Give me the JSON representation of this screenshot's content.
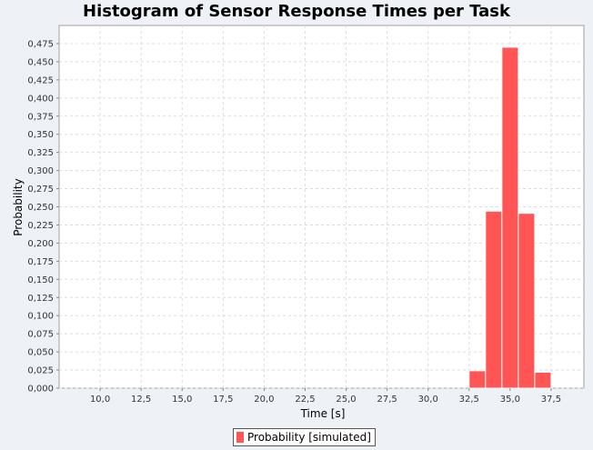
{
  "chart_data": {
    "type": "bar",
    "title": "Histogram of Sensor Response Times per Task",
    "xlabel": "Time [s]",
    "ylabel": "Probability",
    "xlim": [
      7.5,
      39.5
    ],
    "ylim": [
      0,
      0.5
    ],
    "xticks": [
      "10,0",
      "12,5",
      "15,0",
      "17,5",
      "20,0",
      "22,5",
      "25,0",
      "27,5",
      "30,0",
      "32,5",
      "35,0",
      "37,5"
    ],
    "yticks": [
      "0,000",
      "0,025",
      "0,050",
      "0,075",
      "0,100",
      "0,125",
      "0,150",
      "0,175",
      "0,200",
      "0,225",
      "0,250",
      "0,275",
      "0,300",
      "0,325",
      "0,350",
      "0,375",
      "0,400",
      "0,425",
      "0,450",
      "0,475"
    ],
    "grid": true,
    "legend_position": "bottom-center",
    "bar_width": 1,
    "series": [
      {
        "name": "Probability [simulated]",
        "color": "#ff5555",
        "x": [
          33,
          34,
          35,
          36,
          37
        ],
        "values": [
          0.024,
          0.244,
          0.47,
          0.241,
          0.022
        ]
      }
    ]
  }
}
